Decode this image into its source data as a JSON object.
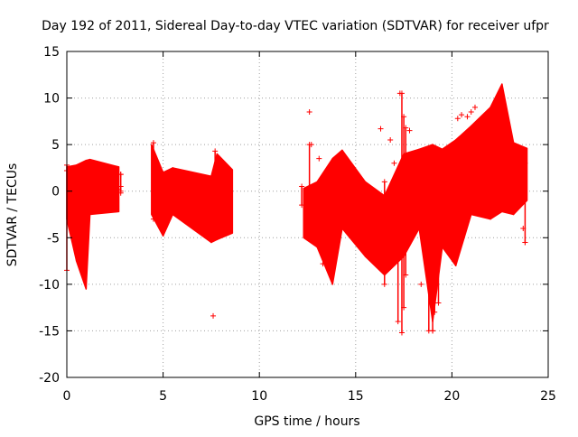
{
  "chart_data": {
    "type": "scatter",
    "title": "Day 192 of 2011, Sidereal Day-to-day VTEC variation (SDTVAR) for receiver ufpr",
    "xlabel": "GPS time / hours",
    "ylabel": "SDTVAR / TECUs",
    "xlim": [
      0,
      25
    ],
    "ylim": [
      -20,
      15
    ],
    "xticks": [
      "0",
      "5",
      "10",
      "15",
      "20",
      "25"
    ],
    "yticks": [
      "15",
      "10",
      "5",
      "0",
      "-5",
      "-10",
      "-15",
      "-20"
    ],
    "grid": true,
    "marker": "plus",
    "color": "#ff0000",
    "series": [
      {
        "bands": [
          {
            "x0": 0.0,
            "x1": 0.5,
            "upper": [
              2.6,
              2.8
            ],
            "lower": [
              -3.0,
              -7.5
            ]
          },
          {
            "x0": 0.5,
            "x1": 1.0,
            "upper": [
              2.8,
              3.3
            ],
            "lower": [
              -7.5,
              -10.5
            ]
          },
          {
            "x0": 1.0,
            "x1": 1.2,
            "upper": [
              3.3,
              3.4
            ],
            "lower": [
              -10.5,
              -2.5
            ]
          },
          {
            "x0": 1.2,
            "x1": 2.7,
            "upper": [
              3.4,
              2.6
            ],
            "lower": [
              -2.5,
              -2.2
            ]
          },
          {
            "x0": 4.4,
            "x1": 5.0,
            "upper": [
              5.0,
              2.0
            ],
            "lower": [
              -2.5,
              -4.8
            ]
          },
          {
            "x0": 5.0,
            "x1": 5.5,
            "upper": [
              2.0,
              2.5
            ],
            "lower": [
              -4.8,
              -2.5
            ]
          },
          {
            "x0": 5.5,
            "x1": 7.5,
            "upper": [
              2.5,
              1.6
            ],
            "lower": [
              -2.5,
              -5.5
            ]
          },
          {
            "x0": 7.5,
            "x1": 7.8,
            "upper": [
              1.6,
              4.0
            ],
            "lower": [
              -5.5,
              -5.2
            ]
          },
          {
            "x0": 7.8,
            "x1": 8.6,
            "upper": [
              4.0,
              2.3
            ],
            "lower": [
              -5.2,
              -4.5
            ]
          },
          {
            "x0": 12.3,
            "x1": 13.0,
            "upper": [
              0.3,
              1.0
            ],
            "lower": [
              -5.0,
              -6.0
            ]
          },
          {
            "x0": 13.0,
            "x1": 13.8,
            "upper": [
              1.0,
              3.5
            ],
            "lower": [
              -6.0,
              -10.0
            ]
          },
          {
            "x0": 13.8,
            "x1": 14.3,
            "upper": [
              3.5,
              4.4
            ],
            "lower": [
              -10.0,
              -4.0
            ]
          },
          {
            "x0": 14.3,
            "x1": 15.5,
            "upper": [
              4.4,
              1.0
            ],
            "lower": [
              -4.0,
              -7.0
            ]
          },
          {
            "x0": 15.5,
            "x1": 16.5,
            "upper": [
              1.0,
              -0.5
            ],
            "lower": [
              -7.0,
              -9.0
            ]
          },
          {
            "x0": 16.5,
            "x1": 17.5,
            "upper": [
              -0.5,
              4.0
            ],
            "lower": [
              -9.0,
              -7.0
            ]
          },
          {
            "x0": 17.5,
            "x1": 18.3,
            "upper": [
              4.0,
              4.5
            ],
            "lower": [
              -7.0,
              -4.0
            ]
          },
          {
            "x0": 18.3,
            "x1": 19.0,
            "upper": [
              4.5,
              5.0
            ],
            "lower": [
              -4.0,
              -14.0
            ]
          },
          {
            "x0": 19.0,
            "x1": 19.5,
            "upper": [
              5.0,
              4.5
            ],
            "lower": [
              -14.0,
              -6.0
            ]
          },
          {
            "x0": 19.5,
            "x1": 20.2,
            "upper": [
              4.5,
              5.5
            ],
            "lower": [
              -6.0,
              -8.0
            ]
          },
          {
            "x0": 20.2,
            "x1": 21.0,
            "upper": [
              5.5,
              7.0
            ],
            "lower": [
              -8.0,
              -2.5
            ]
          },
          {
            "x0": 21.0,
            "x1": 22.0,
            "upper": [
              7.0,
              9.0
            ],
            "lower": [
              -2.5,
              -3.0
            ]
          },
          {
            "x0": 22.0,
            "x1": 22.6,
            "upper": [
              9.0,
              11.5
            ],
            "lower": [
              -3.0,
              -2.2
            ]
          },
          {
            "x0": 22.6,
            "x1": 23.2,
            "upper": [
              11.5,
              5.2
            ],
            "lower": [
              -2.2,
              -2.5
            ]
          },
          {
            "x0": 23.2,
            "x1": 23.9,
            "upper": [
              5.2,
              4.6
            ],
            "lower": [
              -2.5,
              -1.0
            ]
          }
        ],
        "spikes": [
          {
            "x": 0.0,
            "y0": -8.5,
            "y1": 2.8
          },
          {
            "x": 2.8,
            "y0": 0.0,
            "y1": 1.8
          },
          {
            "x": 4.5,
            "y0": -3.0,
            "y1": 5.2
          },
          {
            "x": 7.7,
            "y0": 1.5,
            "y1": 4.3
          },
          {
            "x": 12.2,
            "y0": -1.5,
            "y1": 0.5
          },
          {
            "x": 12.6,
            "y0": -2.0,
            "y1": 5.0
          },
          {
            "x": 16.5,
            "y0": -10.0,
            "y1": 1.0
          },
          {
            "x": 17.2,
            "y0": -14.0,
            "y1": 1.0
          },
          {
            "x": 17.4,
            "y0": -15.2,
            "y1": 10.5
          },
          {
            "x": 17.5,
            "y0": -12.5,
            "y1": 8.0
          },
          {
            "x": 17.6,
            "y0": -9.0,
            "y1": 6.8
          },
          {
            "x": 18.8,
            "y0": -15.0,
            "y1": 1.5
          },
          {
            "x": 19.0,
            "y0": -15.0,
            "y1": 4.5
          },
          {
            "x": 19.1,
            "y0": -13.0,
            "y1": 4.5
          },
          {
            "x": 19.3,
            "y0": -12.0,
            "y1": 4.0
          },
          {
            "x": 23.8,
            "y0": -5.5,
            "y1": 3.0
          }
        ],
        "points": [
          {
            "x": 0.0,
            "y": 2.2
          },
          {
            "x": 2.8,
            "y": 1.8
          },
          {
            "x": 2.8,
            "y": 0.5
          },
          {
            "x": 2.8,
            "y": -0.2
          },
          {
            "x": 2.7,
            "y": 0.2
          },
          {
            "x": 7.6,
            "y": -13.4
          },
          {
            "x": 12.6,
            "y": 8.5
          },
          {
            "x": 12.7,
            "y": 5.0
          },
          {
            "x": 13.1,
            "y": 3.5
          },
          {
            "x": 13.3,
            "y": -7.8
          },
          {
            "x": 16.3,
            "y": 6.7
          },
          {
            "x": 16.8,
            "y": 5.5
          },
          {
            "x": 17.3,
            "y": 10.5
          },
          {
            "x": 17.0,
            "y": 3.0
          },
          {
            "x": 17.8,
            "y": 6.5
          },
          {
            "x": 18.4,
            "y": -10.0
          },
          {
            "x": 19.0,
            "y": -15.0
          },
          {
            "x": 20.3,
            "y": 7.8
          },
          {
            "x": 20.5,
            "y": 8.2
          },
          {
            "x": 20.8,
            "y": 8.0
          },
          {
            "x": 21.0,
            "y": 8.5
          },
          {
            "x": 21.2,
            "y": 9.0
          },
          {
            "x": 23.7,
            "y": -4.0
          },
          {
            "x": 23.8,
            "y": -5.5
          }
        ]
      }
    ]
  }
}
